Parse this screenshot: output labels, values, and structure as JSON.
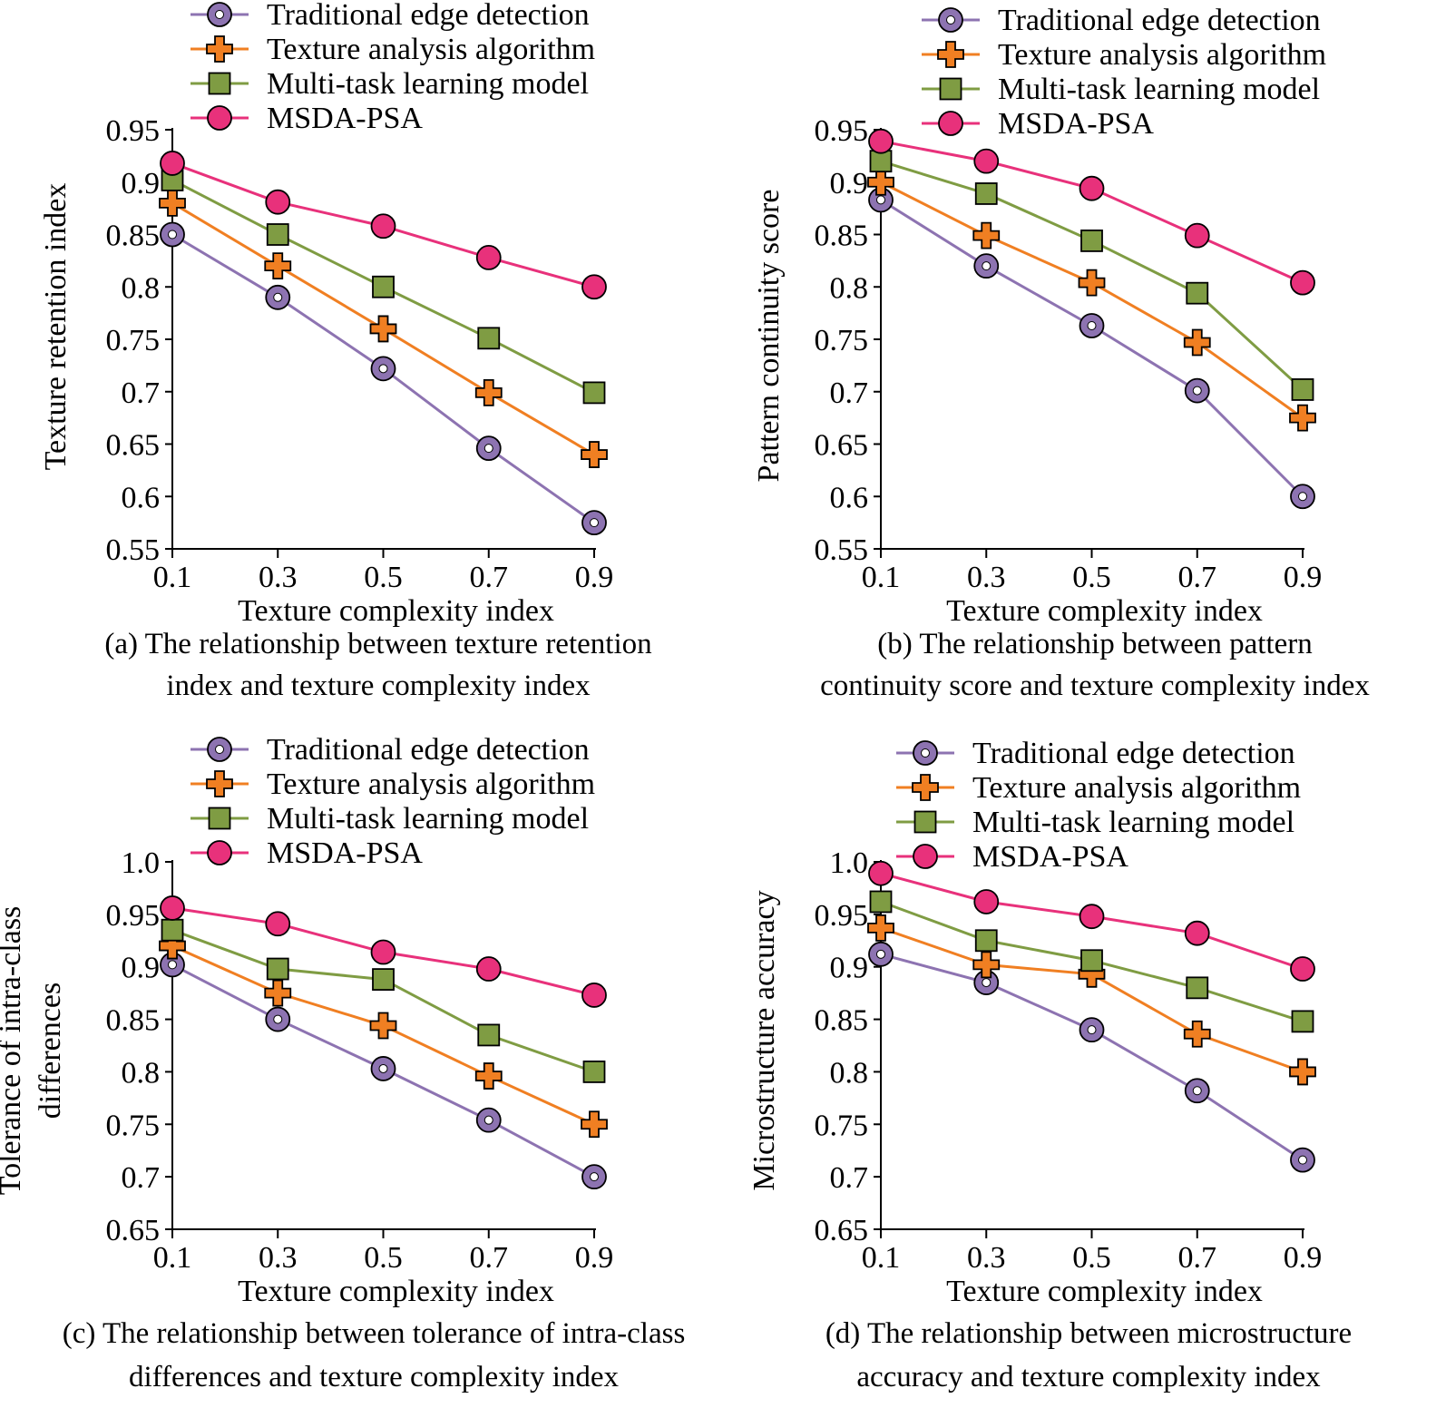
{
  "series_styles": [
    {
      "marker": "circle-dot",
      "color": "#8d73b1"
    },
    {
      "marker": "plus",
      "color": "#f07f22"
    },
    {
      "marker": "square",
      "color": "#7f9c43"
    },
    {
      "marker": "circle",
      "color": "#e8317b"
    }
  ],
  "chart_data": [
    {
      "id": "a",
      "type": "line",
      "xlabel": "Texture complexity index",
      "ylabel": "Texture retention index",
      "x": [
        0.1,
        0.3,
        0.5,
        0.7,
        0.9
      ],
      "xticks": [
        "0.1",
        "0.3",
        "0.5",
        "0.7",
        "0.9"
      ],
      "ylim": [
        0.55,
        0.95
      ],
      "yticks": [
        0.55,
        0.6,
        0.65,
        0.7,
        0.75,
        0.8,
        0.85,
        0.9,
        0.95
      ],
      "ytick_labels": [
        "0.55",
        "0.6",
        "0.65",
        "0.7",
        "0.75",
        "0.8",
        "0.85",
        "0.9",
        "0.95"
      ],
      "legend": "top-left",
      "series": [
        {
          "name": "Traditional edge detection",
          "values": [
            0.85,
            0.79,
            0.722,
            0.646,
            0.575
          ]
        },
        {
          "name": "Texture analysis algorithm",
          "values": [
            0.88,
            0.82,
            0.76,
            0.699,
            0.64
          ]
        },
        {
          "name": "Multi-task learning model",
          "values": [
            0.902,
            0.85,
            0.8,
            0.751,
            0.699
          ]
        },
        {
          "name": "MSDA-PSA",
          "values": [
            0.918,
            0.881,
            0.858,
            0.828,
            0.8
          ]
        }
      ],
      "caption": [
        "(a) The relationship between texture retention",
        "index and texture complexity index"
      ]
    },
    {
      "id": "b",
      "type": "line",
      "xlabel": "Texture complexity index",
      "ylabel": "Pattern continuity score",
      "x": [
        0.1,
        0.3,
        0.5,
        0.7,
        0.9
      ],
      "xticks": [
        "0.1",
        "0.3",
        "0.5",
        "0.7",
        "0.9"
      ],
      "ylim": [
        0.55,
        0.95
      ],
      "yticks": [
        0.55,
        0.6,
        0.65,
        0.7,
        0.75,
        0.8,
        0.85,
        0.9,
        0.95
      ],
      "ytick_labels": [
        "0.55",
        "0.6",
        "0.65",
        "0.7",
        "0.75",
        "0.8",
        "0.85",
        "0.9",
        "0.95"
      ],
      "legend": "top-left",
      "series": [
        {
          "name": "Traditional edge detection",
          "values": [
            0.883,
            0.82,
            0.763,
            0.701,
            0.6
          ]
        },
        {
          "name": "Texture analysis algorithm",
          "values": [
            0.9,
            0.849,
            0.804,
            0.747,
            0.675
          ]
        },
        {
          "name": "Multi-task learning model",
          "values": [
            0.92,
            0.889,
            0.844,
            0.794,
            0.702
          ]
        },
        {
          "name": "MSDA-PSA",
          "values": [
            0.939,
            0.92,
            0.894,
            0.849,
            0.804
          ]
        }
      ],
      "caption": [
        "(b) The relationship between pattern",
        "continuity score and texture complexity index"
      ]
    },
    {
      "id": "c",
      "type": "line",
      "xlabel": "Texture complexity index",
      "ylabel": [
        "Tolerance of intra-class",
        "differences"
      ],
      "x": [
        0.1,
        0.3,
        0.5,
        0.7,
        0.9
      ],
      "xticks": [
        "0.1",
        "0.3",
        "0.5",
        "0.7",
        "0.9"
      ],
      "ylim": [
        0.65,
        1.0
      ],
      "yticks": [
        0.65,
        0.7,
        0.75,
        0.8,
        0.85,
        0.9,
        0.95,
        1.0
      ],
      "ytick_labels": [
        "0.65",
        "0.7",
        "0.75",
        "0.8",
        "0.85",
        "0.9",
        "0.95",
        "1.0"
      ],
      "legend": "top-left",
      "series": [
        {
          "name": "Traditional edge detection",
          "values": [
            0.902,
            0.85,
            0.803,
            0.754,
            0.7
          ]
        },
        {
          "name": "Texture analysis algorithm",
          "values": [
            0.92,
            0.875,
            0.844,
            0.796,
            0.75
          ]
        },
        {
          "name": "Multi-task learning model",
          "values": [
            0.935,
            0.898,
            0.888,
            0.835,
            0.8
          ]
        },
        {
          "name": "MSDA-PSA",
          "values": [
            0.956,
            0.941,
            0.914,
            0.898,
            0.873
          ]
        }
      ],
      "caption": [
        "(c) The relationship between tolerance of intra-class",
        "differences and texture complexity index"
      ]
    },
    {
      "id": "d",
      "type": "line",
      "xlabel": "Texture complexity index",
      "ylabel": "Microstructure accuracy",
      "x": [
        0.1,
        0.3,
        0.5,
        0.7,
        0.9
      ],
      "xticks": [
        "0.1",
        "0.3",
        "0.5",
        "0.7",
        "0.9"
      ],
      "ylim": [
        0.65,
        1.0
      ],
      "yticks": [
        0.65,
        0.7,
        0.75,
        0.8,
        0.85,
        0.9,
        0.95,
        1.0
      ],
      "ytick_labels": [
        "0.65",
        "0.7",
        "0.75",
        "0.8",
        "0.85",
        "0.9",
        "0.95",
        "1.0"
      ],
      "legend": "top-left",
      "series": [
        {
          "name": "Traditional edge detection",
          "values": [
            0.912,
            0.885,
            0.84,
            0.782,
            0.716
          ]
        },
        {
          "name": "Texture analysis algorithm",
          "values": [
            0.937,
            0.902,
            0.893,
            0.836,
            0.8
          ]
        },
        {
          "name": "Multi-task learning model",
          "values": [
            0.962,
            0.925,
            0.906,
            0.88,
            0.848
          ]
        },
        {
          "name": "MSDA-PSA",
          "values": [
            0.989,
            0.962,
            0.948,
            0.932,
            0.898
          ]
        }
      ],
      "caption": [
        "(d) The relationship between microstructure",
        "accuracy and texture complexity index"
      ]
    }
  ]
}
